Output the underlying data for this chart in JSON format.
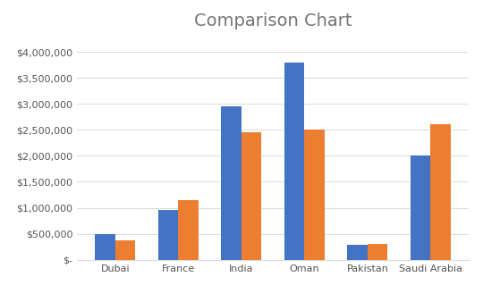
{
  "title": "Comparison Chart",
  "categories": [
    "Dubai",
    "France",
    "India",
    "Oman",
    "Pakistan",
    "Saudi Arabia"
  ],
  "series1": [
    500000,
    950000,
    2950000,
    3800000,
    280000,
    2000000
  ],
  "series2": [
    380000,
    1150000,
    2450000,
    2500000,
    310000,
    2600000
  ],
  "color1": "#4472C4",
  "color2": "#ED7D31",
  "ylim": [
    0,
    4300000
  ],
  "yticks": [
    0,
    500000,
    1000000,
    1500000,
    2000000,
    2500000,
    3000000,
    3500000,
    4000000
  ],
  "background_color": "#FFFFFF",
  "grid_color": "#D9D9D9",
  "title_fontsize": 14,
  "title_color": "#757575",
  "tick_fontsize": 8,
  "xtick_fontsize": 8,
  "bar_width": 0.32
}
